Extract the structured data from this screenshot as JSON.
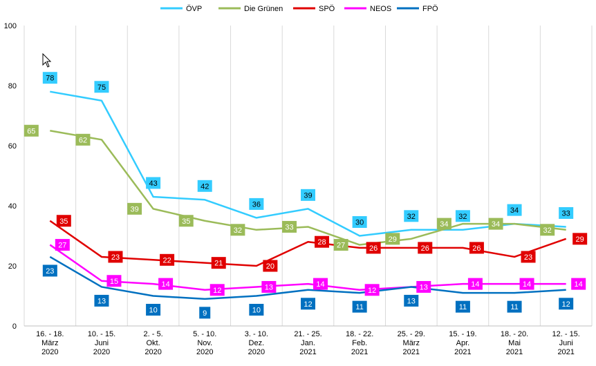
{
  "chart_data": {
    "type": "line",
    "categories": [
      [
        "16. - 18.",
        "März",
        "2020"
      ],
      [
        "10. - 15.",
        "Juni",
        "2020"
      ],
      [
        "2. - 5.",
        "Okt.",
        "2020"
      ],
      [
        "5. - 10.",
        "Nov.",
        "2020"
      ],
      [
        "3. - 10.",
        "Dez.",
        "2020"
      ],
      [
        "21. - 25.",
        "Jan.",
        "2021"
      ],
      [
        "18. - 22.",
        "Feb.",
        "2021"
      ],
      [
        "25. - 29.",
        "März",
        "2021"
      ],
      [
        "15. - 19.",
        "Apr.",
        "2021"
      ],
      [
        "18. - 20.",
        "Mai",
        "2021"
      ],
      [
        "12. - 15.",
        "Juni",
        "2021"
      ]
    ],
    "ylim": [
      0,
      100
    ],
    "yticks": [
      0,
      20,
      40,
      60,
      80,
      100
    ],
    "grid": "vertical",
    "legend_position": "top",
    "series": [
      {
        "name": "ÖVP",
        "color": "#33ccff",
        "label_text_color": "#000000",
        "values": [
          78,
          75,
          43,
          42,
          36,
          39,
          30,
          32,
          32,
          34,
          33
        ]
      },
      {
        "name": "Die Grünen",
        "color": "#9bbb59",
        "label_text_color": "#ffffff",
        "values": [
          65,
          62,
          39,
          35,
          32,
          33,
          27,
          29,
          34,
          34,
          32
        ]
      },
      {
        "name": "SPÖ",
        "color": "#e00000",
        "label_text_color": "#ffffff",
        "values": [
          35,
          23,
          22,
          21,
          20,
          28,
          26,
          26,
          26,
          23,
          29
        ]
      },
      {
        "name": "NEOS",
        "color": "#ff00ff",
        "label_text_color": "#ffffff",
        "values": [
          27,
          15,
          14,
          12,
          13,
          14,
          12,
          13,
          14,
          14,
          14
        ]
      },
      {
        "name": "FPÖ",
        "color": "#0070c0",
        "label_text_color": "#ffffff",
        "values": [
          23,
          13,
          10,
          9,
          10,
          12,
          11,
          13,
          11,
          11,
          12
        ]
      }
    ]
  }
}
